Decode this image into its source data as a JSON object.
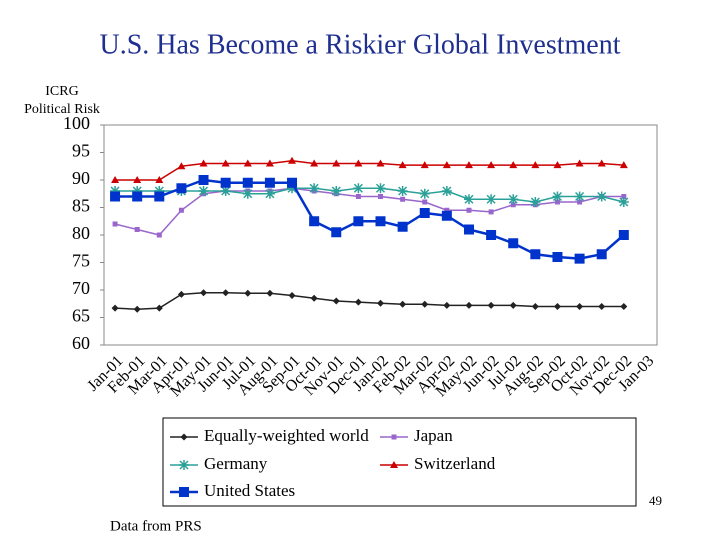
{
  "chart_data": {
    "type": "line",
    "title": "U.S. Has Become a Riskier Global Investment",
    "y_label": [
      "ICRG",
      "Political Risk"
    ],
    "source": "Data from PRS",
    "slide_number": "49",
    "categories": [
      "Jan-01",
      "Feb-01",
      "Mar-01",
      "Apr-01",
      "May-01",
      "Jun-01",
      "Jul-01",
      "Aug-01",
      "Sep-01",
      "Oct-01",
      "Nov-01",
      "Dec-01",
      "Jan-02",
      "Feb-02",
      "Mar-02",
      "Apr-02",
      "May-02",
      "Jun-02",
      "Jul-02",
      "Aug-02",
      "Sep-02",
      "Oct-02",
      "Nov-02",
      "Dec-02",
      "Jan-03"
    ],
    "ylim": [
      60,
      100
    ],
    "yticks": [
      60,
      65,
      70,
      75,
      80,
      85,
      90,
      95,
      100
    ],
    "series": [
      {
        "name": "Equally-weighted world",
        "color": "#222222",
        "marker": "diamond",
        "values": [
          66.7,
          66.5,
          66.7,
          69.2,
          69.5,
          69.5,
          69.4,
          69.4,
          69,
          68.5,
          68,
          67.8,
          67.6,
          67.4,
          67.4,
          67.2,
          67.2,
          67.2,
          67.2,
          67,
          67,
          67,
          67,
          67,
          null
        ]
      },
      {
        "name": "Japan",
        "color": "#9966cc",
        "marker": "small-square",
        "values": [
          82,
          81,
          80,
          84.5,
          87.5,
          88,
          88,
          88,
          88.5,
          88,
          87.5,
          87,
          87,
          86.5,
          86,
          84.5,
          84.5,
          84.2,
          85.5,
          85.5,
          86,
          86,
          87,
          87,
          null
        ]
      },
      {
        "name": "Germany",
        "color": "#2aa198",
        "marker": "asterisk",
        "values": [
          88,
          88,
          88,
          88,
          88,
          88,
          87.5,
          87.5,
          88.5,
          88.5,
          88,
          88.5,
          88.5,
          88,
          87.5,
          88,
          86.5,
          86.5,
          86.5,
          86,
          87,
          87,
          87,
          86,
          null
        ]
      },
      {
        "name": "Switzerland",
        "color": "#cc0000",
        "marker": "triangle",
        "values": [
          90,
          90,
          90,
          92.5,
          93,
          93,
          93,
          93,
          93.5,
          93,
          93,
          93,
          93,
          92.7,
          92.7,
          92.7,
          92.7,
          92.7,
          92.7,
          92.7,
          92.7,
          93,
          93,
          92.7,
          null
        ]
      },
      {
        "name": "United States",
        "color": "#0033cc",
        "marker": "square",
        "values": [
          87,
          87,
          87,
          88.5,
          90,
          89.5,
          89.5,
          89.5,
          89.5,
          82.5,
          80.5,
          82.5,
          82.5,
          81.5,
          84,
          83.5,
          81,
          80,
          78.5,
          76.5,
          76,
          75.7,
          76.5,
          80,
          null
        ]
      }
    ]
  }
}
